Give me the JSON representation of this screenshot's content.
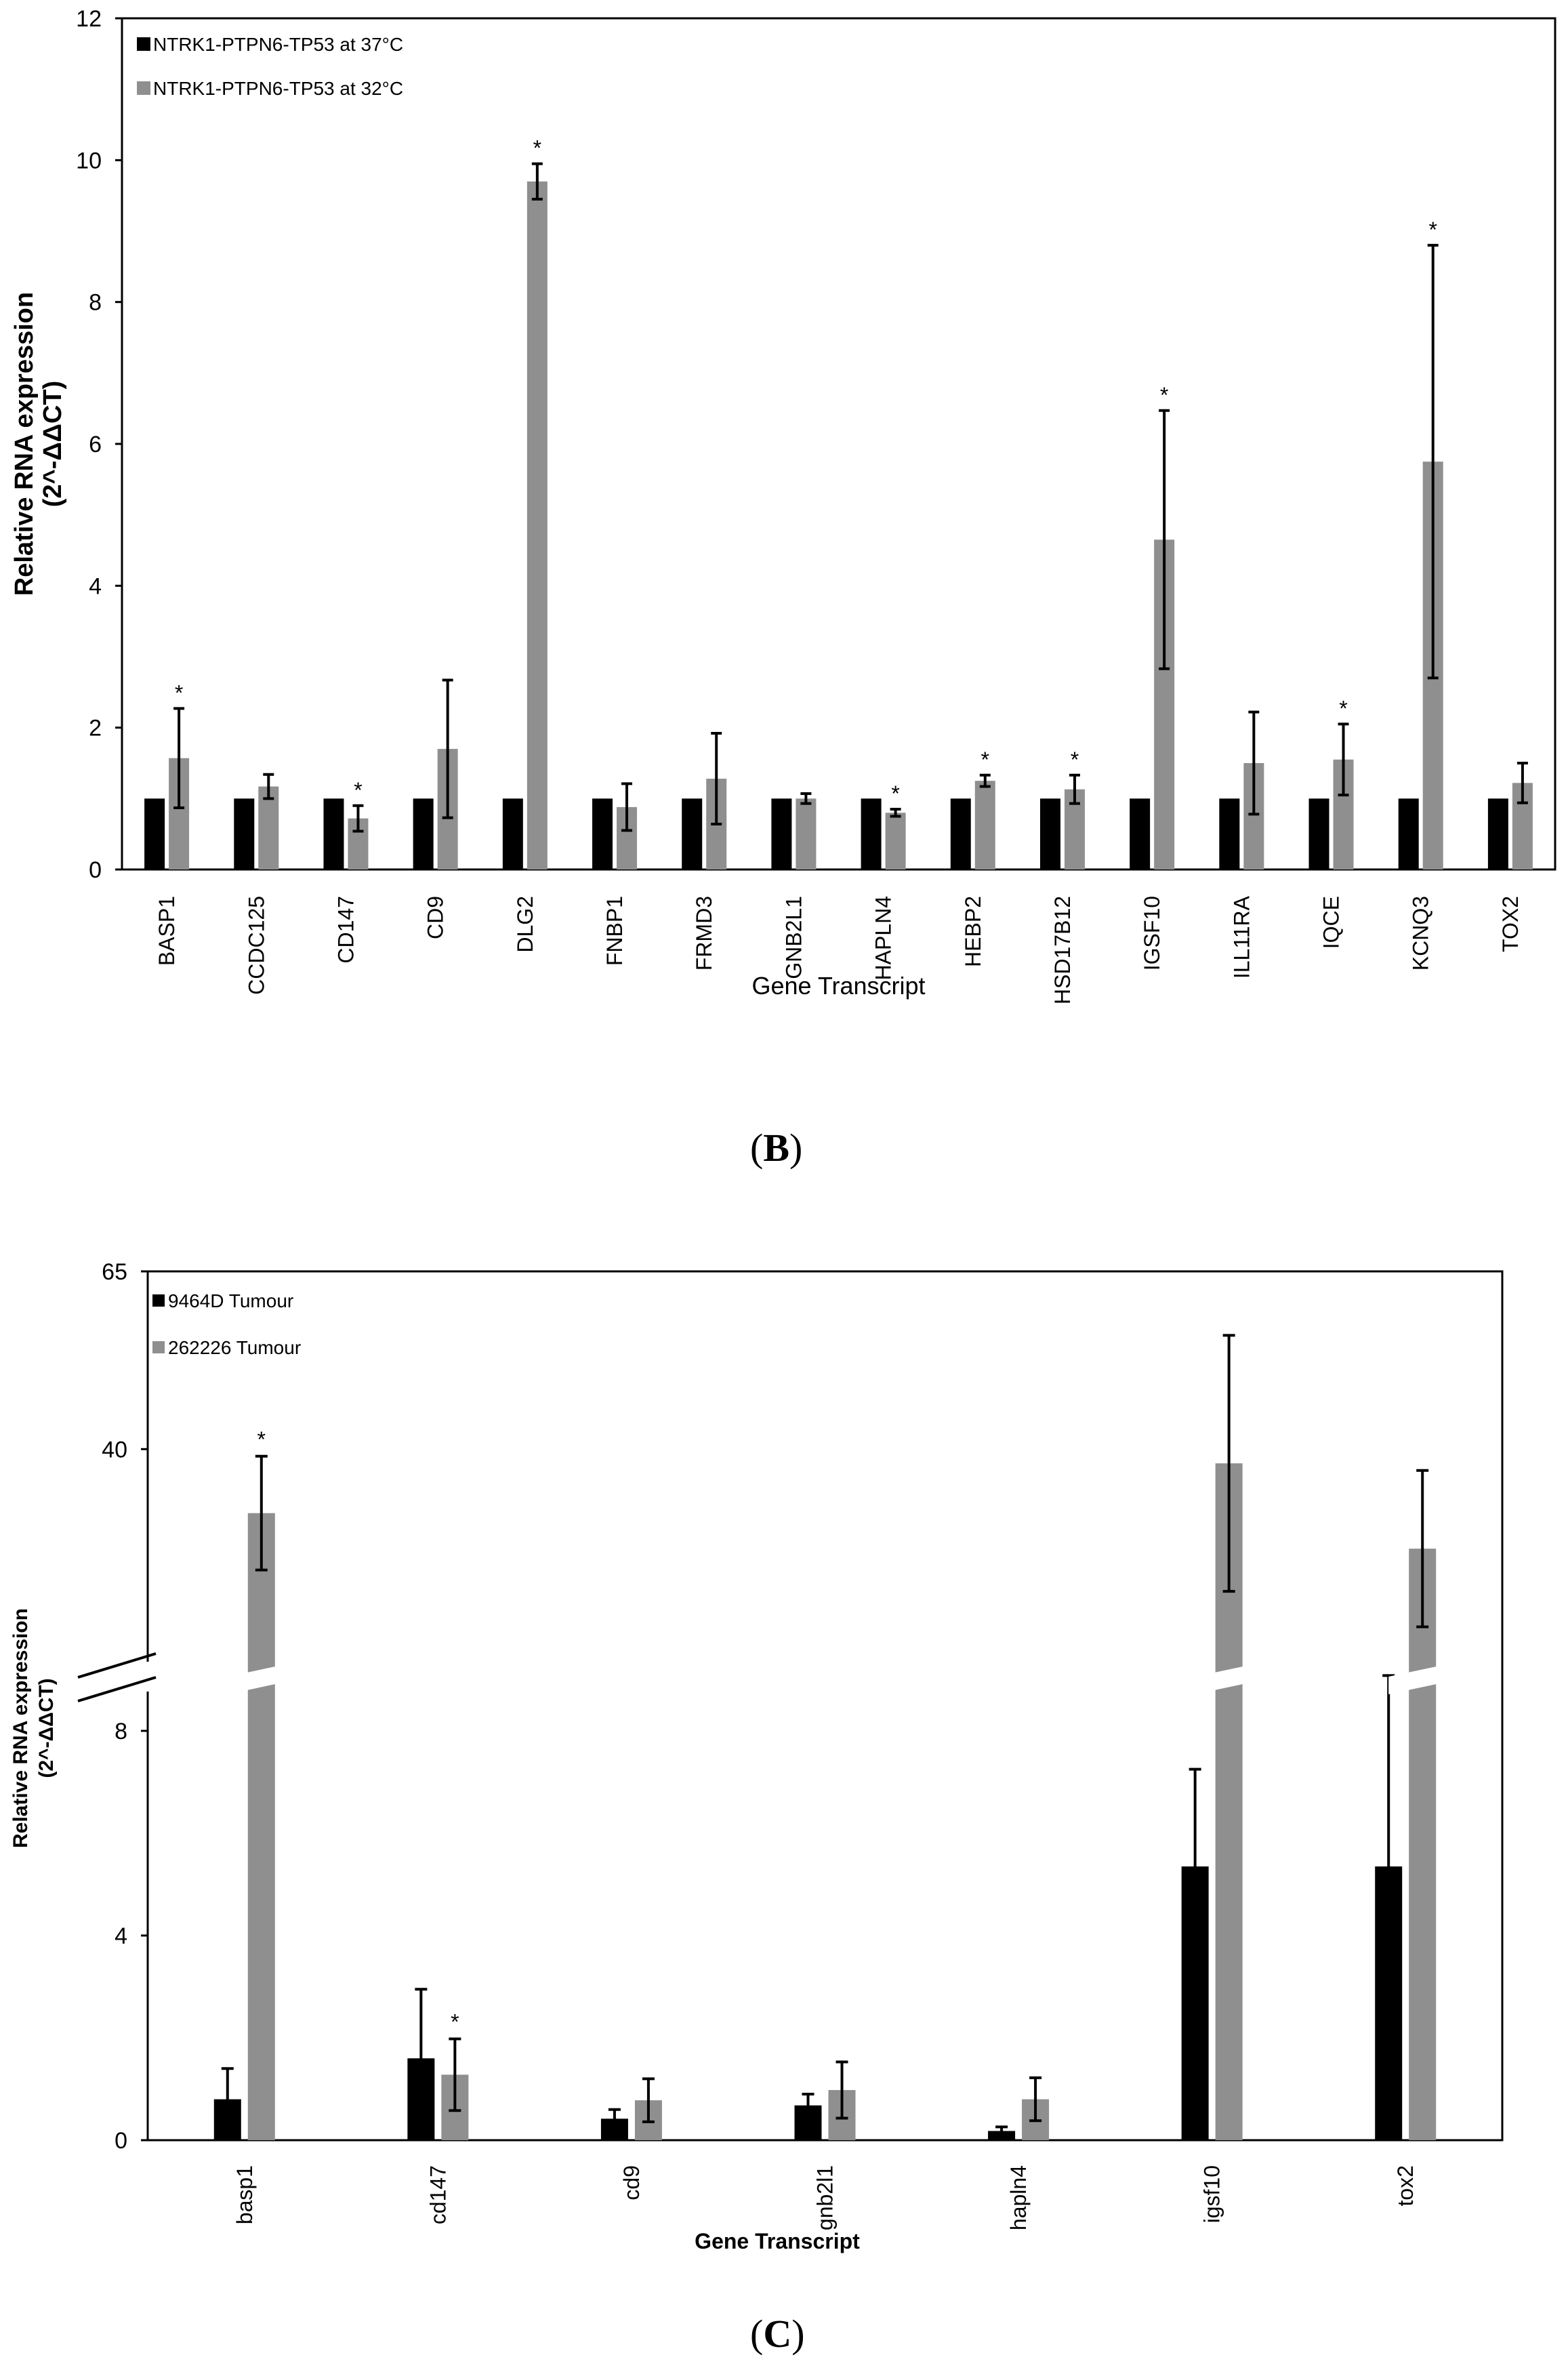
{
  "colors": {
    "series1": "#000000",
    "series2": "#8f8f8f",
    "axis": "#000000",
    "error": "#000000"
  },
  "panels": [
    {
      "label_prefix": "(",
      "label_letter": "B",
      "label_suffix": ")"
    },
    {
      "label_prefix": "(",
      "label_letter": "C",
      "label_suffix": ")"
    }
  ],
  "chart_data": [
    {
      "type": "bar",
      "panel": "B",
      "title": "",
      "xlabel": "Gene Transcript",
      "ylabel_line1": "Relative RNA expression",
      "ylabel_line2": "(2^-ΔΔCT)",
      "ylim": [
        0,
        12
      ],
      "yticks": [
        "0",
        "2",
        "4",
        "6",
        "8",
        "10",
        "12"
      ],
      "legend_position": "top-left",
      "categories": [
        "BASP1",
        "CCDC125",
        "CD147",
        "CD9",
        "DLG2",
        "FNBP1",
        "FRMD3",
        "GNB2L1",
        "HAPLN4",
        "HEBP2",
        "HSD17B12",
        "IGSF10",
        "ILL11RA",
        "IQCE",
        "KCNQ3",
        "TOX2"
      ],
      "series": [
        {
          "name": "NTRK1-PTPN6-TP53 at 37°C",
          "values": [
            1,
            1,
            1,
            1,
            1,
            1,
            1,
            1,
            1,
            1,
            1,
            1,
            1,
            1,
            1,
            1
          ],
          "errors": [
            0,
            0,
            0,
            0,
            0,
            0,
            0,
            0,
            0,
            0,
            0,
            0,
            0,
            0,
            0,
            0
          ]
        },
        {
          "name": "NTRK1-PTPN6-TP53 at 32°C",
          "values": [
            1.57,
            1.17,
            0.72,
            1.7,
            9.7,
            0.88,
            1.28,
            1.0,
            0.8,
            1.25,
            1.13,
            4.65,
            1.5,
            1.55,
            5.75,
            1.22
          ],
          "errors": [
            0.7,
            0.17,
            0.18,
            0.97,
            0.25,
            0.33,
            0.64,
            0.07,
            0.05,
            0.08,
            0.2,
            1.82,
            0.72,
            0.5,
            3.05,
            0.28
          ]
        }
      ],
      "significant": [
        "*",
        "",
        "*",
        "",
        "*",
        "",
        "",
        "",
        "*",
        "*",
        "*",
        "*",
        "",
        "*",
        "*",
        ""
      ]
    },
    {
      "type": "bar",
      "panel": "C",
      "title": "",
      "xlabel": "Gene Transcript",
      "ylabel_line1": "Relative RNA expression",
      "ylabel_line2": "(2^-ΔΔCT)",
      "axis_break": {
        "lower_range": [
          0,
          8
        ],
        "upper_range": [
          8,
          65
        ]
      },
      "yticks": [
        "0",
        "4",
        "8",
        "40",
        "65"
      ],
      "legend_position": "top-left",
      "categories": [
        "basp1",
        "cd147",
        "cd9",
        "gnb2l1",
        "hapln4",
        "igsf10",
        "tox2"
      ],
      "series": [
        {
          "name": "9464D Tumour",
          "values": [
            0.8,
            1.6,
            0.42,
            0.68,
            0.18,
            5.35,
            5.35
          ],
          "errors": [
            0.6,
            1.35,
            0.18,
            0.22,
            0.08,
            1.9,
            2.8
          ]
        },
        {
          "name": "262226 Tumour",
          "values": [
            31,
            1.28,
            0.78,
            0.98,
            0.8,
            38,
            26
          ],
          "errors": [
            8,
            0.7,
            0.42,
            0.55,
            0.42,
            18,
            11
          ]
        }
      ],
      "significant": [
        "*",
        "*",
        "",
        "",
        "",
        "",
        ""
      ]
    }
  ]
}
